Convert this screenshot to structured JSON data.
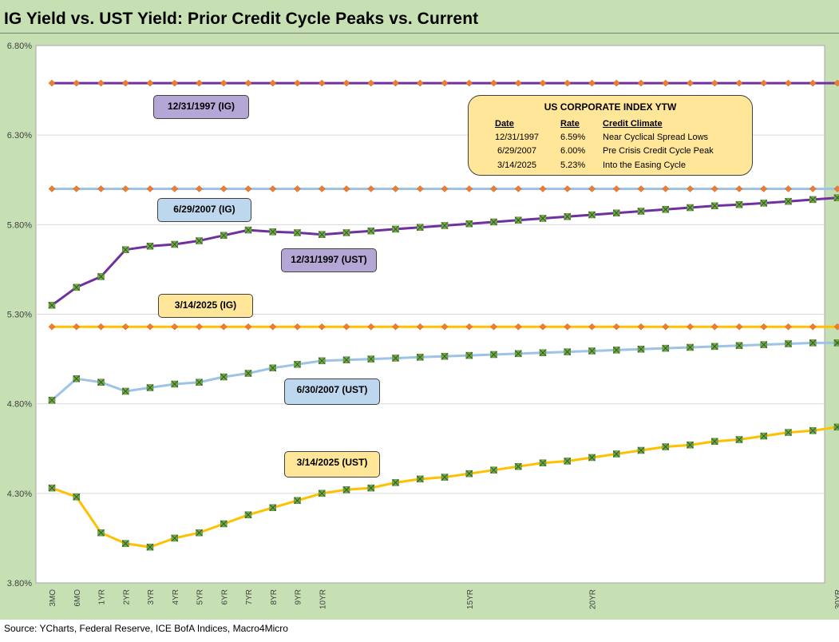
{
  "title": "IG Yield vs. UST Yield: Prior Credit Cycle Peaks vs. Current",
  "source": "Source: YCharts, Federal Reserve, ICE BofA Indices, Macro4Micro",
  "colors": {
    "frame_bg": "#c6e0b4",
    "purple": "#7030a0",
    "lightblue": "#9dc3e6",
    "gold": "#ffc000",
    "ig_marker": "#ed7d31",
    "ust_marker": "#70ad47",
    "callout_purple": "#b4a7d6",
    "callout_blue": "#bdd7ee",
    "callout_gold": "#ffe699"
  },
  "callouts": {
    "ig_1997": "12/31/1997 (IG)",
    "ig_2007": "6/29/2007 (IG)",
    "ust_1997": "12/31/1997 (UST)",
    "ig_2025": "3/14/2025 (IG)",
    "ust_2007": "6/30/2007 (UST)",
    "ust_2025": "3/14/2025 (UST)"
  },
  "ytw_table": {
    "title": "US CORPORATE  INDEX YTW",
    "headers": [
      "Date",
      "Rate",
      "Credit Climate"
    ],
    "rows": [
      [
        "12/31/1997",
        "6.59%",
        "Near Cyclical Spread Lows"
      ],
      [
        "6/29/2007",
        "6.00%",
        "Pre Crisis Credit Cycle Peak"
      ],
      [
        "3/14/2025",
        "5.23%",
        "Into the Easing Cycle"
      ]
    ]
  },
  "chart_data": {
    "type": "line",
    "title": "IG Yield vs. UST Yield: Prior Credit Cycle Peaks vs. Current",
    "xlabel": "",
    "ylabel": "",
    "ylim": [
      3.8,
      6.8
    ],
    "yticks": [
      "3.80%",
      "4.30%",
      "4.80%",
      "5.30%",
      "5.80%",
      "6.30%",
      "6.80%"
    ],
    "ytick_values": [
      3.8,
      4.3,
      4.8,
      5.3,
      5.8,
      6.3,
      6.8
    ],
    "x_labels": [
      "3MO",
      "6MO",
      "1YR",
      "2YR",
      "3YR",
      "4YR",
      "5YR",
      "6YR",
      "7YR",
      "8YR",
      "9YR",
      "10YR",
      "",
      "",
      "",
      "",
      "",
      "15YR",
      "",
      "",
      "",
      "",
      "20YR",
      "",
      "",
      "",
      "",
      "",
      "",
      "",
      "",
      "",
      "30YR"
    ],
    "grid": "horizontal",
    "series": [
      {
        "name": "12/31/1997 (IG)",
        "color": "#7030a0",
        "marker": "diamond",
        "values": [
          6.59,
          6.59,
          6.59,
          6.59,
          6.59,
          6.59,
          6.59,
          6.59,
          6.59,
          6.59,
          6.59,
          6.59,
          6.59,
          6.59,
          6.59,
          6.59,
          6.59,
          6.59,
          6.59,
          6.59,
          6.59,
          6.59,
          6.59,
          6.59,
          6.59,
          6.59,
          6.59,
          6.59,
          6.59,
          6.59,
          6.59,
          6.59,
          6.59
        ]
      },
      {
        "name": "6/29/2007 (IG)",
        "color": "#9dc3e6",
        "marker": "diamond",
        "values": [
          6.0,
          6.0,
          6.0,
          6.0,
          6.0,
          6.0,
          6.0,
          6.0,
          6.0,
          6.0,
          6.0,
          6.0,
          6.0,
          6.0,
          6.0,
          6.0,
          6.0,
          6.0,
          6.0,
          6.0,
          6.0,
          6.0,
          6.0,
          6.0,
          6.0,
          6.0,
          6.0,
          6.0,
          6.0,
          6.0,
          6.0,
          6.0,
          6.0
        ]
      },
      {
        "name": "3/14/2025 (IG)",
        "color": "#ffc000",
        "marker": "diamond",
        "values": [
          5.23,
          5.23,
          5.23,
          5.23,
          5.23,
          5.23,
          5.23,
          5.23,
          5.23,
          5.23,
          5.23,
          5.23,
          5.23,
          5.23,
          5.23,
          5.23,
          5.23,
          5.23,
          5.23,
          5.23,
          5.23,
          5.23,
          5.23,
          5.23,
          5.23,
          5.23,
          5.23,
          5.23,
          5.23,
          5.23,
          5.23,
          5.23,
          5.23
        ]
      },
      {
        "name": "12/31/1997 (UST)",
        "color": "#7030a0",
        "marker": "x-square",
        "values": [
          5.35,
          5.45,
          5.51,
          5.66,
          5.68,
          5.69,
          5.71,
          5.74,
          5.77,
          5.76,
          5.755,
          5.745,
          5.755,
          5.765,
          5.775,
          5.785,
          5.795,
          5.805,
          5.815,
          5.825,
          5.835,
          5.845,
          5.855,
          5.865,
          5.875,
          5.885,
          5.895,
          5.905,
          5.912,
          5.92,
          5.93,
          5.94,
          5.95
        ]
      },
      {
        "name": "6/30/2007 (UST)",
        "color": "#9dc3e6",
        "marker": "x-square",
        "values": [
          4.82,
          4.94,
          4.92,
          4.87,
          4.89,
          4.91,
          4.92,
          4.95,
          4.97,
          5.0,
          5.02,
          5.04,
          5.045,
          5.05,
          5.055,
          5.06,
          5.065,
          5.07,
          5.075,
          5.08,
          5.085,
          5.09,
          5.095,
          5.1,
          5.105,
          5.11,
          5.115,
          5.12,
          5.125,
          5.13,
          5.135,
          5.14,
          5.14
        ]
      },
      {
        "name": "3/14/2025 (UST)",
        "color": "#ffc000",
        "marker": "x-square",
        "values": [
          4.33,
          4.28,
          4.08,
          4.02,
          4.0,
          4.05,
          4.08,
          4.13,
          4.18,
          4.22,
          4.26,
          4.3,
          4.32,
          4.33,
          4.36,
          4.38,
          4.39,
          4.41,
          4.43,
          4.45,
          4.47,
          4.48,
          4.5,
          4.52,
          4.54,
          4.56,
          4.57,
          4.59,
          4.6,
          4.62,
          4.64,
          4.65,
          4.67
        ]
      }
    ]
  }
}
